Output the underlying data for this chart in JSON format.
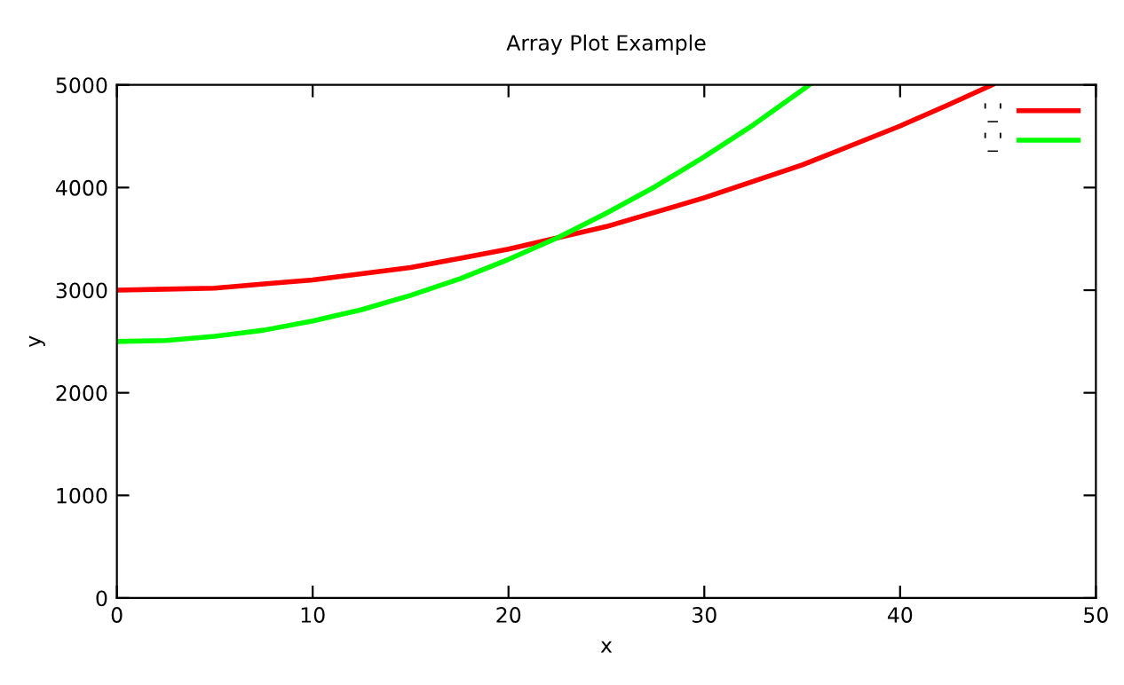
{
  "chart_data": {
    "type": "line",
    "title": "Array Plot Example",
    "xlabel": "x",
    "ylabel": "y",
    "xlim": [
      0,
      50
    ],
    "xticks": [
      0,
      10,
      20,
      30,
      40,
      50
    ],
    "ylim": [
      0,
      5000
    ],
    "yticks": [
      0,
      1000,
      2000,
      3000,
      4000,
      5000
    ],
    "grid": false,
    "legend": "top right",
    "marker": "none",
    "line_style": "solid",
    "series": [
      {
        "name": "'_'",
        "color": "#ff0000",
        "x": [
          0,
          2.5,
          5,
          7.5,
          10,
          12.5,
          15,
          17.5,
          20,
          22.5,
          25,
          27.5,
          30,
          32.5,
          35,
          37.5,
          40,
          42.5,
          44.7
        ],
        "values": [
          3000,
          3010,
          3020,
          3060,
          3100,
          3160,
          3220,
          3310,
          3400,
          3510,
          3620,
          3760,
          3900,
          4060,
          4220,
          4410,
          4600,
          4810,
          5000
        ]
      },
      {
        "name": "'_'",
        "color": "#00ff00",
        "x": [
          0,
          2.5,
          5,
          7.5,
          10,
          12.5,
          15,
          17.5,
          20,
          22.5,
          25,
          27.5,
          30,
          32.5,
          35,
          35.35
        ],
        "values": [
          2500,
          2510,
          2550,
          2610,
          2700,
          2810,
          2950,
          3110,
          3300,
          3510,
          3750,
          4010,
          4300,
          4610,
          4950,
          5000
        ]
      }
    ]
  }
}
